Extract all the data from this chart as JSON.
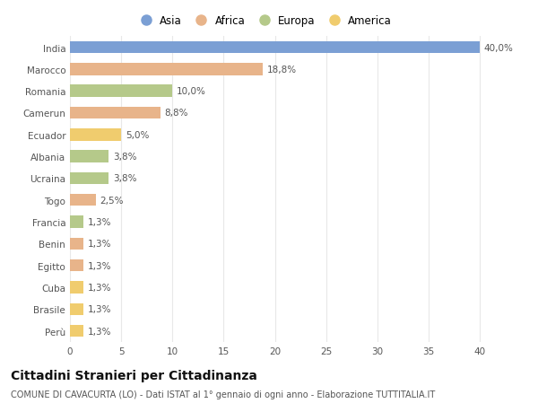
{
  "countries": [
    "India",
    "Marocco",
    "Romania",
    "Camerun",
    "Ecuador",
    "Albania",
    "Ucraina",
    "Togo",
    "Francia",
    "Benin",
    "Egitto",
    "Cuba",
    "Brasile",
    "Perù"
  ],
  "values": [
    40.0,
    18.8,
    10.0,
    8.8,
    5.0,
    3.8,
    3.8,
    2.5,
    1.3,
    1.3,
    1.3,
    1.3,
    1.3,
    1.3
  ],
  "labels": [
    "40,0%",
    "18,8%",
    "10,0%",
    "8,8%",
    "5,0%",
    "3,8%",
    "3,8%",
    "2,5%",
    "1,3%",
    "1,3%",
    "1,3%",
    "1,3%",
    "1,3%",
    "1,3%"
  ],
  "continents": [
    "Asia",
    "Africa",
    "Europa",
    "Africa",
    "America",
    "Europa",
    "Europa",
    "Africa",
    "Europa",
    "Africa",
    "Africa",
    "America",
    "America",
    "America"
  ],
  "colors": {
    "Asia": "#7b9fd4",
    "Africa": "#e8b48a",
    "Europa": "#b5c98a",
    "America": "#f0cc6e"
  },
  "legend_order": [
    "Asia",
    "Africa",
    "Europa",
    "America"
  ],
  "title": "Cittadini Stranieri per Cittadinanza",
  "subtitle": "COMUNE DI CAVACURTA (LO) - Dati ISTAT al 1° gennaio di ogni anno - Elaborazione TUTTITALIA.IT",
  "xlim": [
    0,
    42
  ],
  "xticks": [
    0,
    5,
    10,
    15,
    20,
    25,
    30,
    35,
    40
  ],
  "background_color": "#ffffff",
  "grid_color": "#e8e8e8",
  "label_fontsize": 7.5,
  "title_fontsize": 10,
  "subtitle_fontsize": 7,
  "tick_fontsize": 7.5,
  "legend_fontsize": 8.5,
  "bar_height": 0.55
}
